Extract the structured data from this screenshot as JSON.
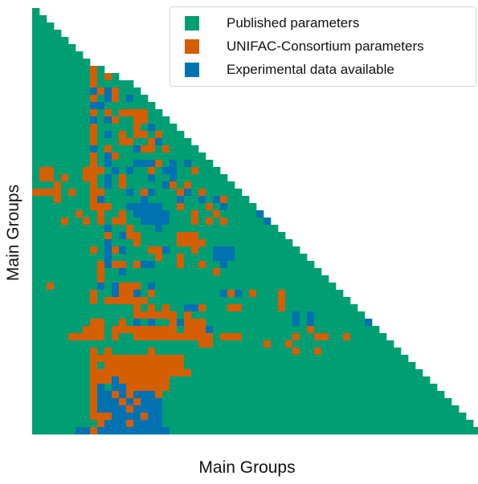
{
  "chart_data": {
    "type": "heatmap",
    "title": "",
    "xlabel": "Main Groups",
    "ylabel": "Main Groups",
    "layout": "lower-triangular",
    "n_groups": 59,
    "legend_position": "upper-right",
    "grid": false,
    "categories": [
      {
        "code": "P",
        "name": "Published parameters",
        "color": "#009E73"
      },
      {
        "code": "U",
        "name": "UNIFAC-Consortium parameters",
        "color": "#D55E00"
      },
      {
        "code": "E",
        "name": "Experimental data available",
        "color": "#0072B2"
      }
    ],
    "rows": [
      "P",
      "PP",
      "PPP",
      "PPPP",
      "PPPPP",
      "PPPPPP",
      "PPPPPPP",
      "PPPPPPPP",
      "PPPPPPPPUP",
      "PPPPPPPPUPUP",
      "PPPPPPPPUPPPPP",
      "PPPPPPPPEUEUPPP",
      "PPPPPPPPUPEUPEPP",
      "PPPPPPPPEEPPPPPPP",
      "PPPPPPPPUPUPUUUUPP",
      "PPPPPPPPEPEUPPUUPPP",
      "PPPPPPPPUPPPPPUPEPPP",
      "PPPPPPPPUPEPUPUUPUPPP",
      "PPPPPPPPUPPPUUPPUEPPPP",
      "PPPPPPPPEPUPPPEUUPUPPPP",
      "PPPPPPPPUPEUPPPPPPPPPPPP",
      "PPPPPPPPUPEPPPEEEUPEPEPPP",
      "PUUPPPPUUUPEPEPPUPEEPPUPPP",
      "PUUPUPPUUPEPUPPPEPPEPPPPPPP",
      "PPPUPPPPUPEPUPPPPPEUPUPPPPPP",
      "UUUUPUPPUUPPPEPUEPPPUEPUPPPPP",
      "PPPUPPPPUEPPPPPEPPPPEPPEPEUPPP",
      "PPPPPPPPUUUPPEEEEEPPUPPPUPEPPPP",
      "PPPPPPUPPUPPUPEEEEEPPPUPPUPPPPPE",
      "PPPPUPPUPUPUUPPEEEEPPPUPUPUPPPPPE",
      "PPPPPPPPPPEPPUPPPEPPPPPPPPPPPPPPPP",
      "PPPPPPPPPPUPEUUPPPPPUUUPPPPPPPPPPPP",
      "PPPPPPPPPPEPPPUPPPPPUUUUPPPPPPPPPPPP",
      "PPPPPPPPUPEUEPPPUUEPPPUPPEEEPPPPPPPPP",
      "PPPPPPPPPPEPPPPPPUPPUPPPPEEEPPPPPPPPPP",
      "PPPPPPPPPUEUUPUEEPPPUPPUPPEPPPPPPPPPPPP",
      "PPPPPPPPPUPPEPPPPPPPPPPPPUPPPPPPPPPPPPPP",
      "PPPPPPPPPUPPPPPPPPPPPPPPPPPPPPPPPPPPPPPPP",
      "PPUPPPPPPEPEUUUPEPPPPPPPPPPPPPPPPPPPPPPPPP",
      "PPPPPPPPUPPEUUEPUPPPPPPPPPEUEPUPPPUPPPPPPPP",
      "PPPPPPPPUPUUUUUUPPPPPPPPPPPPPPPPPPUPPPPPPPPP",
      "PPPPPPPPPPPPPPUPUPUPPEEUPPPUUPPPPPUPPPPPPPPPP",
      "PPPPPPPPPPPPPPUUUUUUPUPPPPPPPPPPPPPPEPEPPPPPPP",
      "PPPPPPPPUUPPUPEPEPPUEUUUPPPPPPPPPPPPEPEPPPPPPPE",
      "PPPPPPPUUUPUUUUUUUUUPUUUEPPPPPPPPPPPPPUPPPPPPPPP",
      "PPPPPUUUUUPUPPUUUUUUUUUUUPUUUPPPPPPPUPPUUPPUPPPPP",
      "PPPPPPPPPPPPPPPPPPPPPPPUUPPPPPPPUPPUPPPPPPPPPPPPPP",
      "PPPPPPPPUPUPPPPPUPPPPPPPPPPPPPPPPPPPUPPUPPPPPPPPPPP",
      "PPPPPPPPUUUUUUUUUUUUUPPPPPPPPPPPPPPPPPPPPPPPPPPPPPPP",
      "PPPPPPPPUPUUUUUUUUUUUPPPPPPPPPPPPPPPPPPPPPPPPPPPPPPPP",
      "PPPPPPPPUUUUUUUUUUUUUUPPPPPPPPPPPPPPPPPPPPPPPPPPPPPPPP",
      "PPPPPPPPUUUEUUUUUUUPPPPPPPPPPPPPPPPPPPPPPPPPPPPPPPPPPPP",
      "PPPPPPPPUEPEEUUUUUUPPPPPPPPPPPPPPPPPPPPPPPPPPPPPPPPPPPPP",
      "PPPPPPPPUEEUEUEEEUPPPPPPPPPPPPPPPPPPPPPPPPPPPPPPPPPPPPPPP",
      "PPPPPPPPUEEEUEUEEEPPPPPPPPPPPPPPPPPPPPPPPPPPPPPPPPPPPPPPPP",
      "PPPPPPPPUEEEEUEEEEPPPPPPPPPPPPPPPPPPPPPPPPPPPPPPPPPPPPPPPPP",
      "PPPPPPPPUUUEEEEUEEPPPPPPPPPPPPPPPPPPPPPPPPPPPPPPPPPPPPPPPPPP",
      "PPPPPPPPPUEEEUEEEEPPPPPPPPPPPPPPPPPPPPPPPPPPPPPPPPPPPPPPPPPPP",
      "PPPPPPEEUEEEEEEEEEEPPPPPPPPPPPPPPPPPPPPPPPPPPPPPPPPPPPPPPPPPPP"
    ]
  },
  "legend": {
    "items": [
      {
        "label": "Published parameters",
        "color": "#009E73"
      },
      {
        "label": "UNIFAC-Consortium parameters",
        "color": "#D55E00"
      },
      {
        "label": "Experimental data available",
        "color": "#0072B2"
      }
    ]
  },
  "axes": {
    "xlabel": "Main Groups",
    "ylabel": "Main Groups"
  }
}
